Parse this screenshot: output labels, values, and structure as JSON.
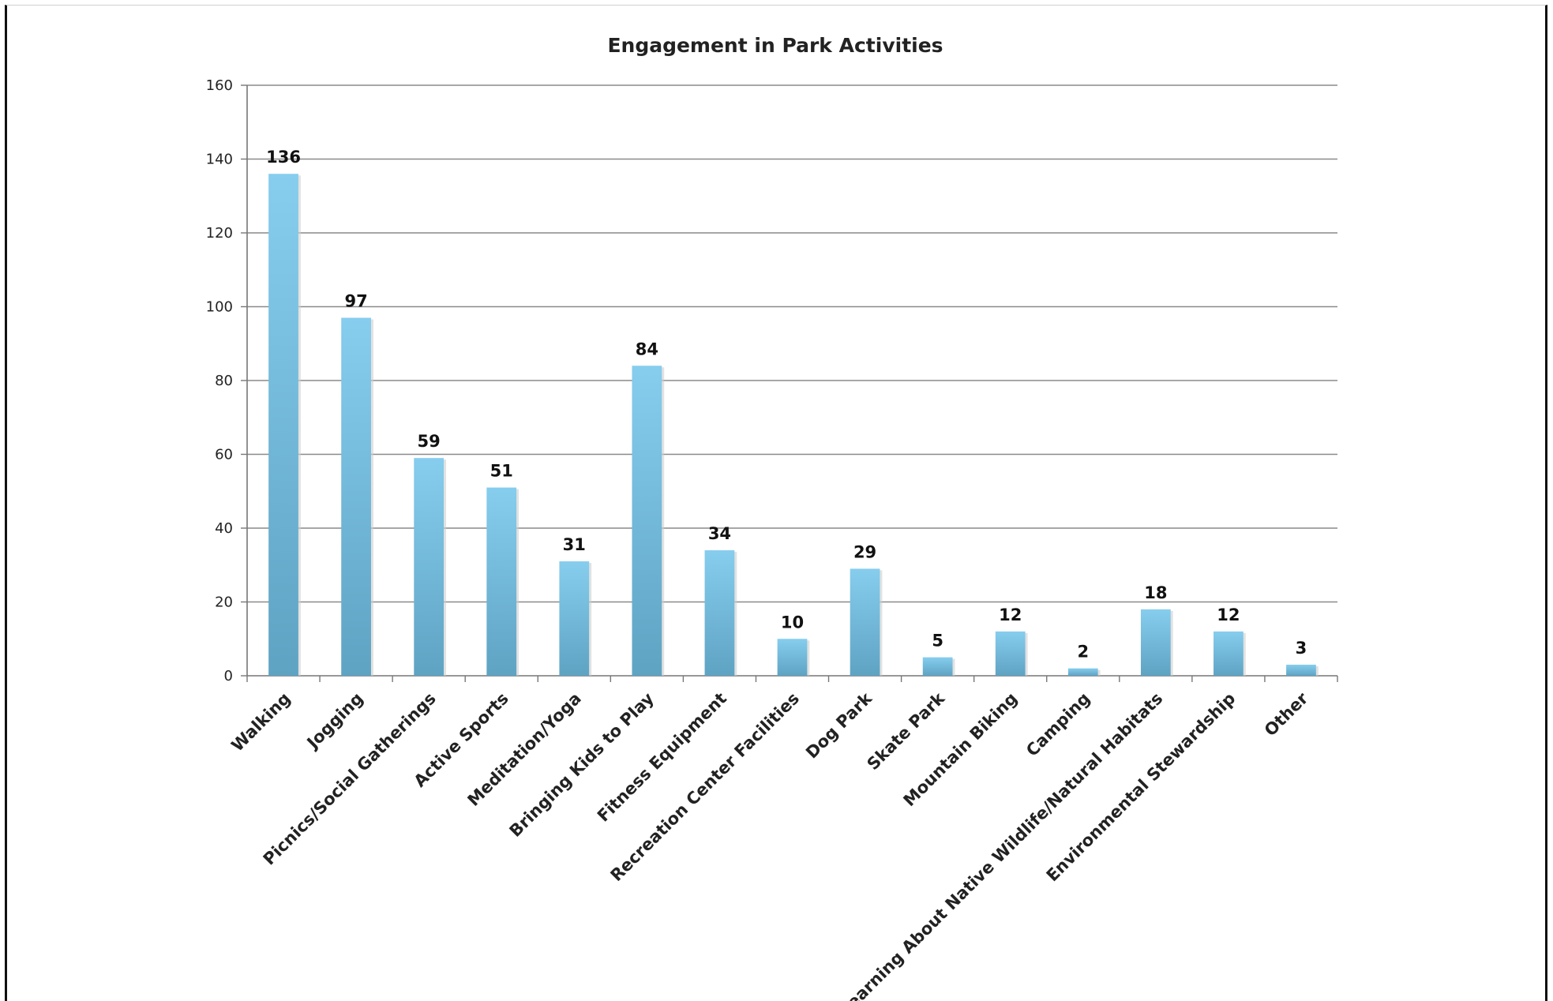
{
  "chart_data": {
    "type": "bar",
    "title": "Engagement in Park Activities",
    "xlabel": "",
    "ylabel": "",
    "ylim": [
      0,
      160
    ],
    "yticks": [
      0,
      20,
      40,
      60,
      80,
      100,
      120,
      140,
      160
    ],
    "grid": true,
    "legend": "none",
    "bar_color": "#7ec4e6",
    "categories": [
      "Walking",
      "Jogging",
      "Picnics/Social Gatherings",
      "Active Sports",
      "Meditation/Yoga",
      "Bringing Kids to Play",
      "Fitness Equipment",
      "Recreation Center Facilities",
      "Dog Park",
      "Skate Park",
      "Mountain Biking",
      "Camping",
      "Learning About Native Wildlife/Natural Habitats",
      "Environmental Stewardship",
      "Other"
    ],
    "values": [
      136,
      97,
      59,
      51,
      31,
      84,
      34,
      10,
      29,
      5,
      12,
      2,
      18,
      12,
      3
    ]
  }
}
